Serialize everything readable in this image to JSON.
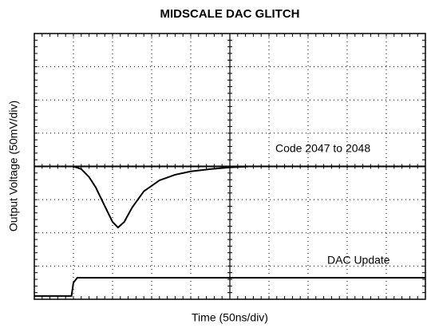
{
  "chart_data": {
    "type": "line",
    "title": "MIDSCALE DAC GLITCH",
    "xlabel": "Time (50ns/div)",
    "ylabel": "Output Voltage (50mV/div)",
    "annotations": [
      "Code 2047 to 2048",
      "DAC Update"
    ],
    "xlim": [
      0,
      10
    ],
    "ylim": [
      0,
      8
    ],
    "xticks": [
      0,
      1,
      2,
      3,
      4,
      5,
      6,
      7,
      8,
      9,
      10
    ],
    "yticks": [
      0,
      1,
      2,
      3,
      4,
      5,
      6,
      7,
      8
    ],
    "grid": true,
    "series": [
      {
        "color": "#000000",
        "x": [
          0,
          1,
          1.2,
          1.4,
          1.57,
          1.8,
          2.0,
          2.14,
          2.3,
          2.5,
          2.8,
          3.2,
          3.6,
          4.0,
          4.5,
          5.0,
          5.5,
          10
        ],
        "values": [
          4,
          4,
          3.92,
          3.68,
          3.37,
          2.81,
          2.33,
          2.16,
          2.33,
          2.76,
          3.25,
          3.58,
          3.75,
          3.85,
          3.92,
          3.97,
          4,
          4
        ]
      },
      {
        "color": "#000000",
        "x": [
          0,
          0.95,
          1.0,
          1.1,
          10
        ],
        "values": [
          0.1,
          0.1,
          0.5,
          0.65,
          0.65
        ]
      }
    ]
  }
}
